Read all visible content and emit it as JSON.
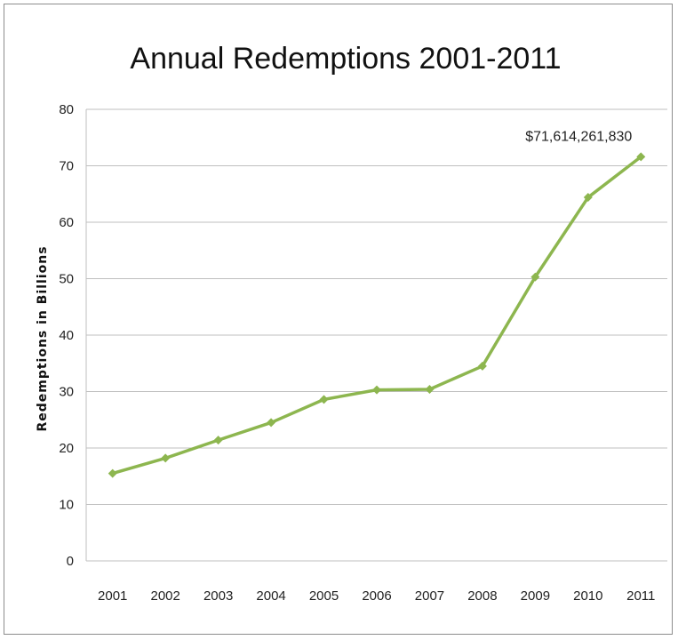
{
  "chart_data": {
    "type": "line",
    "title": "Annual Redemptions 2001-2011",
    "xlabel": "",
    "ylabel": "Redemptions in Billions",
    "categories": [
      "2001",
      "2002",
      "2003",
      "2004",
      "2005",
      "2006",
      "2007",
      "2008",
      "2009",
      "2010",
      "2011"
    ],
    "series": [
      {
        "values": [
          15.5,
          18.2,
          21.4,
          24.5,
          28.6,
          30.3,
          30.4,
          34.5,
          50.3,
          64.4,
          71.6
        ]
      }
    ],
    "ylim": [
      0,
      80
    ],
    "yticks": [
      "0",
      "10",
      "20",
      "30",
      "40",
      "50",
      "60",
      "70",
      "80"
    ],
    "annotation": {
      "text": "$71,614,261,830",
      "category": "2011"
    },
    "grid": true,
    "legend": "none",
    "line_color": "#8db64f",
    "marker_color": "#8db64f"
  }
}
